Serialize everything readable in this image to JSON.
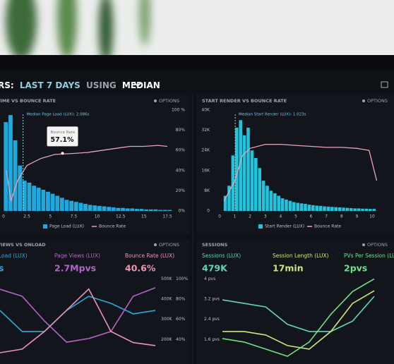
{
  "header": {
    "parts": [
      "RS:",
      "LAST 7 DAYS",
      "USING",
      "MEDIAN"
    ]
  },
  "chart_data": [
    {
      "type": "histogram",
      "title": "TIME VS BOUNCE RATE",
      "options": "OPTIONS",
      "bins": [
        0,
        0.5,
        1,
        1.5,
        2,
        2.5,
        3,
        3.5,
        4,
        4.5,
        5,
        5.5,
        6,
        6.5,
        7,
        7.5,
        8,
        8.5,
        9,
        9.5,
        10,
        10.5,
        11,
        11.5,
        12,
        12.5,
        13,
        13.5,
        14,
        14.5,
        15,
        15.5,
        16,
        16.5,
        17,
        17.5,
        18
      ],
      "xlim": [
        0,
        17.5
      ],
      "xticks": [
        0,
        2.5,
        5,
        7.5,
        10,
        12.5,
        15,
        17.5
      ],
      "ylim": [
        0,
        100
      ],
      "y2lim": [
        0,
        100
      ],
      "y2ticks": [
        {
          "value": 0,
          "label": "0%"
        },
        {
          "value": 20,
          "label": "20%"
        },
        {
          "value": 40,
          "label": "40%"
        },
        {
          "value": 60,
          "label": "60%"
        },
        {
          "value": 80,
          "label": "80%"
        },
        {
          "value": 100,
          "label": "100 %"
        }
      ],
      "annotations": [
        {
          "text": "Median Page Load (LUX): 2.086s",
          "x": 2.086
        }
      ],
      "tooltip": {
        "label": "Bounce Rate",
        "value_label": "57.1%",
        "x": 6.3,
        "value": 57.1
      },
      "legend": true,
      "series": [
        {
          "name": "Page Load (LUX)",
          "color": "#1fa9dc",
          "values": [
            88,
            95,
            70,
            45,
            30,
            28,
            25,
            23,
            21,
            19,
            17,
            15,
            13,
            11,
            10,
            9,
            8,
            7,
            6,
            5.5,
            5,
            4.5,
            4,
            3.5,
            3,
            3,
            2.5,
            2.5,
            2,
            2,
            1.5,
            1.5,
            1.5,
            1,
            1,
            1
          ]
        },
        {
          "name": "Bounce Rate",
          "color": "#e9a3b6",
          "axis": "y2",
          "x": [
            0.3,
            0.8,
            1.5,
            2.5,
            4,
            5.5,
            7.5,
            9,
            10.5,
            12,
            13.5,
            15,
            16.5,
            17.5
          ],
          "values": [
            40,
            10,
            30,
            45,
            52,
            56,
            57,
            58,
            60,
            62,
            64,
            64,
            65,
            64
          ]
        }
      ]
    },
    {
      "type": "histogram",
      "title": "START RENDER VS BOUNCE RATE",
      "options": "OPTIONS",
      "bins": [
        0.25,
        0.5,
        0.75,
        1,
        1.25,
        1.5,
        1.75,
        2,
        2.25,
        2.5,
        2.75,
        3,
        3.25,
        3.5,
        3.75,
        4,
        4.25,
        4.5,
        4.75,
        5,
        5.25,
        5.5,
        5.75,
        6,
        6.25,
        6.5,
        6.75,
        7,
        7.25,
        7.5,
        7.75,
        8,
        8.25,
        8.5,
        8.75,
        9,
        9.25,
        9.5,
        9.75,
        10,
        10.25
      ],
      "xlim": [
        0,
        10
      ],
      "xticks": [
        0,
        1,
        2,
        3,
        4,
        5,
        6,
        7,
        8,
        9,
        10
      ],
      "ylim": [
        0,
        40000
      ],
      "yticks": [
        0,
        {
          "value": 8000,
          "label": "8K"
        },
        {
          "value": 16000,
          "label": "16K"
        },
        {
          "value": 24000,
          "label": "24K"
        },
        {
          "value": 32000,
          "label": "32K"
        },
        {
          "value": 40000,
          "label": "40K"
        }
      ],
      "y2lim": [
        0,
        100
      ],
      "annotations": [
        {
          "text": "Median Start Render (LUX): 1.023s",
          "x": 1.023
        }
      ],
      "legend": true,
      "series": [
        {
          "name": "Start Render (LUX)",
          "color": "#22c3dc",
          "values": [
            6000,
            10000,
            22000,
            33000,
            36000,
            30000,
            33000,
            24000,
            21000,
            17000,
            12000,
            10000,
            8000,
            7000,
            6000,
            5000,
            4500,
            4000,
            3500,
            3200,
            3000,
            2800,
            2500,
            2300,
            2100,
            2000,
            1800,
            1700,
            1600,
            1500,
            1400,
            1300,
            1200,
            1100,
            1000,
            1000,
            900,
            900,
            800,
            800
          ]
        },
        {
          "name": "Bounce Rate",
          "color": "#e9a3b6",
          "axis": "y2",
          "x": [
            0.3,
            1,
            1.5,
            2,
            3,
            4,
            5,
            6,
            7,
            8,
            9,
            9.8,
            10.3
          ],
          "values": [
            10,
            30,
            55,
            62,
            66,
            66,
            65,
            64,
            63,
            63,
            62,
            60,
            30
          ]
        }
      ]
    },
    {
      "type": "line",
      "title": "VIEWS VS ONLOAD",
      "options": "OPTIONS",
      "ylim": [
        100000,
        550000
      ],
      "yticks": [
        {
          "value": 500000,
          "label": "500K"
        },
        {
          "value": 400000,
          "label": "400K"
        },
        {
          "value": 300000,
          "label": "300K"
        },
        {
          "value": 200000,
          "label": "200K"
        }
      ],
      "y2lim": [
        20,
        110
      ],
      "y2ticks": [
        {
          "value": 100,
          "label": "100%"
        },
        {
          "value": 80,
          "label": "80%"
        },
        {
          "value": 60,
          "label": "60%"
        },
        {
          "value": 40,
          "label": "40%"
        }
      ],
      "series": [
        {
          "name": "Load (LUX)",
          "kpi": "s",
          "color": "#2fa6dd",
          "values": [
            344000,
            240000,
            240000,
            344000,
            414000,
            379000,
            327000,
            344000
          ]
        },
        {
          "name": "Page Views (LUX)",
          "kpi": "2.7Mpvs",
          "color": "#b463c6",
          "values": [
            449000,
            414000,
            292000,
            187000,
            205000,
            240000,
            414000,
            456000
          ]
        },
        {
          "name": "Bounce Rate (LUX)",
          "kpi": "40.6%",
          "color": "#ec93b4",
          "axis": "y2",
          "values": [
            27,
            30.5,
            48,
            69,
            90,
            48,
            37,
            34
          ]
        }
      ]
    },
    {
      "type": "line",
      "title": "SESSIONS",
      "options": "OPTIONS",
      "ylim": [
        0.8,
        4.4
      ],
      "yticks": [
        {
          "value": 4,
          "label": "4 pvs"
        },
        {
          "value": 3.2,
          "label": "3.2 pvs"
        },
        {
          "value": 2.4,
          "label": "2.4 pvs"
        },
        {
          "value": 1.6,
          "label": "1.6 pvs"
        }
      ],
      "series": [
        {
          "name": "Sessions (LUX)",
          "kpi": "479K",
          "color": "#5fd6b4",
          "values": [
            3.17,
            3.03,
            2.89,
            2.2,
            1.92,
            1.92,
            2.33,
            3.31
          ]
        },
        {
          "name": "Session Length (LUX)",
          "kpi": "17min",
          "color": "#cfe57a",
          "values": [
            1.92,
            1.92,
            1.78,
            1.36,
            1.22,
            1.92,
            3.03,
            3.53
          ]
        },
        {
          "name": "PVs Per Session (LUX)",
          "kpi": "2pvs",
          "color": "#6fe08a",
          "values": [
            1.64,
            1.5,
            1.22,
            0.94,
            1.5,
            2.6,
            3.5,
            4.0
          ]
        }
      ]
    }
  ]
}
